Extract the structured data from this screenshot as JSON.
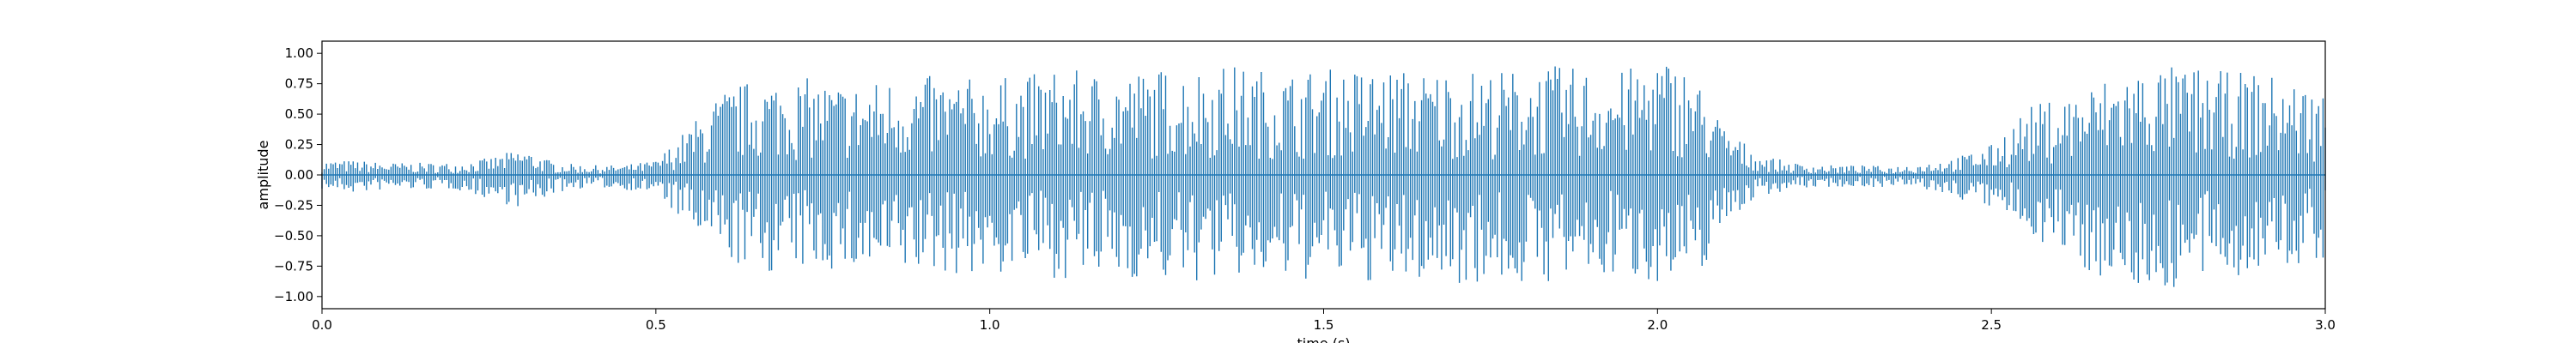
{
  "chart_data": {
    "type": "area",
    "title": "",
    "xlabel": "time (s)",
    "ylabel": "amplitude",
    "xlim": [
      0.0,
      3.0
    ],
    "ylim": [
      -1.1,
      1.1
    ],
    "xticks": [
      0.0,
      0.5,
      1.0,
      1.5,
      2.0,
      2.5,
      3.0
    ],
    "xtick_labels": [
      "0.0",
      "0.5",
      "1.0",
      "1.5",
      "2.0",
      "2.5",
      "3.0"
    ],
    "yticks": [
      -1.0,
      -0.75,
      -0.5,
      -0.25,
      0.0,
      0.25,
      0.5,
      0.75,
      1.0
    ],
    "ytick_labels": [
      "−1.00",
      "−0.75",
      "−0.50",
      "−0.25",
      "0.00",
      "0.25",
      "0.50",
      "0.75",
      "1.00"
    ],
    "grid": false,
    "series": [
      {
        "color": "#1f77b4",
        "x": [
          0.0,
          0.05,
          0.1,
          0.15,
          0.2,
          0.25,
          0.3,
          0.35,
          0.4,
          0.45,
          0.5,
          0.55,
          0.6,
          0.65,
          0.7,
          0.75,
          0.8,
          0.85,
          0.9,
          0.95,
          1.0,
          1.05,
          1.1,
          1.15,
          1.2,
          1.25,
          1.3,
          1.35,
          1.4,
          1.45,
          1.5,
          1.55,
          1.6,
          1.65,
          1.7,
          1.75,
          1.8,
          1.85,
          1.9,
          1.95,
          2.0,
          2.05,
          2.1,
          2.15,
          2.2,
          2.25,
          2.3,
          2.35,
          2.4,
          2.45,
          2.5,
          2.55,
          2.6,
          2.65,
          2.7,
          2.75,
          2.8,
          2.85,
          2.9,
          2.95,
          3.0
        ],
        "upper": [
          0.12,
          0.12,
          0.1,
          0.1,
          0.1,
          0.14,
          0.22,
          0.1,
          0.08,
          0.08,
          0.12,
          0.4,
          0.7,
          0.8,
          0.82,
          0.78,
          0.75,
          0.8,
          0.82,
          0.8,
          0.8,
          0.82,
          0.88,
          0.85,
          0.85,
          0.88,
          0.88,
          0.92,
          0.88,
          0.85,
          0.88,
          0.88,
          0.88,
          0.86,
          0.88,
          0.86,
          0.88,
          0.9,
          0.88,
          0.86,
          1.0,
          0.88,
          0.4,
          0.18,
          0.1,
          0.08,
          0.08,
          0.07,
          0.1,
          0.15,
          0.25,
          0.55,
          0.65,
          0.75,
          0.88,
          0.9,
          0.9,
          0.85,
          0.85,
          0.78,
          0.7
        ],
        "lower": [
          -0.12,
          -0.15,
          -0.12,
          -0.12,
          -0.12,
          -0.2,
          -0.28,
          -0.15,
          -0.1,
          -0.12,
          -0.15,
          -0.45,
          -0.7,
          -0.82,
          -0.8,
          -0.78,
          -0.82,
          -0.85,
          -0.82,
          -0.82,
          -0.85,
          -0.8,
          -0.85,
          -0.88,
          -0.85,
          -0.88,
          -0.9,
          -0.85,
          -0.88,
          -0.9,
          -0.85,
          -0.88,
          -0.92,
          -0.88,
          -0.9,
          -0.88,
          -0.92,
          -0.88,
          -0.88,
          -0.85,
          -0.88,
          -1.0,
          -0.4,
          -0.18,
          -0.12,
          -0.1,
          -0.1,
          -0.1,
          -0.12,
          -0.2,
          -0.28,
          -0.45,
          -0.65,
          -0.82,
          -0.9,
          -1.0,
          -0.9,
          -0.85,
          -0.82,
          -0.78,
          -0.7
        ]
      }
    ]
  }
}
